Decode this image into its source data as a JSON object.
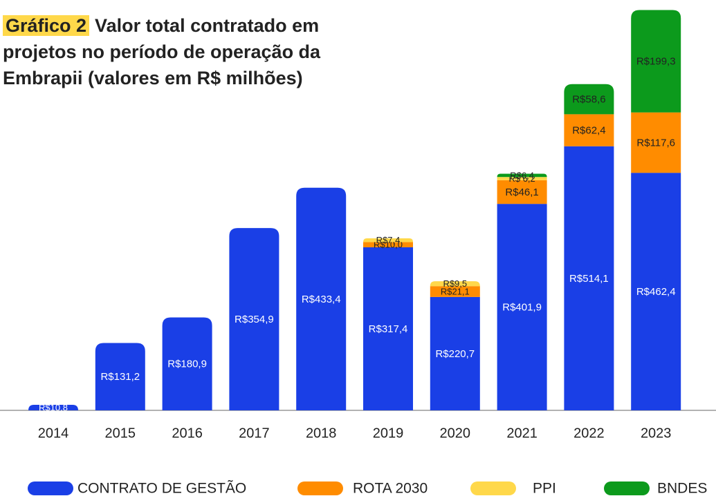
{
  "chart_data": {
    "type": "stacked-bar",
    "title_tag": "Gráfico 2",
    "title": "Valor total contratado em projetos no período de operação da Embrapii (valores em R$ milhões)",
    "categories": [
      "2014",
      "2015",
      "2016",
      "2017",
      "2018",
      "2019",
      "2020",
      "2021",
      "2022",
      "2023"
    ],
    "series": [
      {
        "name": "CONTRATO DE GESTÃO",
        "color": "#1a3fe6",
        "values": [
          10.8,
          131.2,
          180.9,
          354.9,
          433.4,
          317.4,
          220.7,
          401.9,
          514.1,
          462.4
        ],
        "value_labels": [
          "R$10,8",
          "R$131,2",
          "R$180,9",
          "R$354,9",
          "R$433,4",
          "R$317,4",
          "R$220,7",
          "R$401,9",
          "R$514,1",
          "R$462,4"
        ]
      },
      {
        "name": "ROTA 2030",
        "color": "#ff8c00",
        "values": [
          null,
          null,
          null,
          null,
          null,
          10.0,
          21.1,
          46.1,
          62.4,
          117.6
        ],
        "value_labels": [
          null,
          null,
          null,
          null,
          null,
          "R$10,0",
          "R$21,1",
          "R$46,1",
          "R$62,4",
          "R$117,6"
        ]
      },
      {
        "name": "PPI",
        "color": "#ffd84a",
        "values": [
          null,
          null,
          null,
          null,
          null,
          7.4,
          9.5,
          6.2,
          null,
          null
        ],
        "value_labels": [
          null,
          null,
          null,
          null,
          null,
          "R$7,4",
          "R$9,5",
          "R$ 6,2",
          null,
          null
        ]
      },
      {
        "name": "BNDES",
        "color": "#0c9a1c",
        "values": [
          null,
          null,
          null,
          null,
          null,
          null,
          null,
          6.4,
          58.6,
          199.3
        ],
        "value_labels": [
          null,
          null,
          null,
          null,
          null,
          null,
          null,
          "R$6,4",
          "R$58,6",
          "R$199,3"
        ]
      }
    ],
    "ylim": [
      0,
      780
    ]
  }
}
